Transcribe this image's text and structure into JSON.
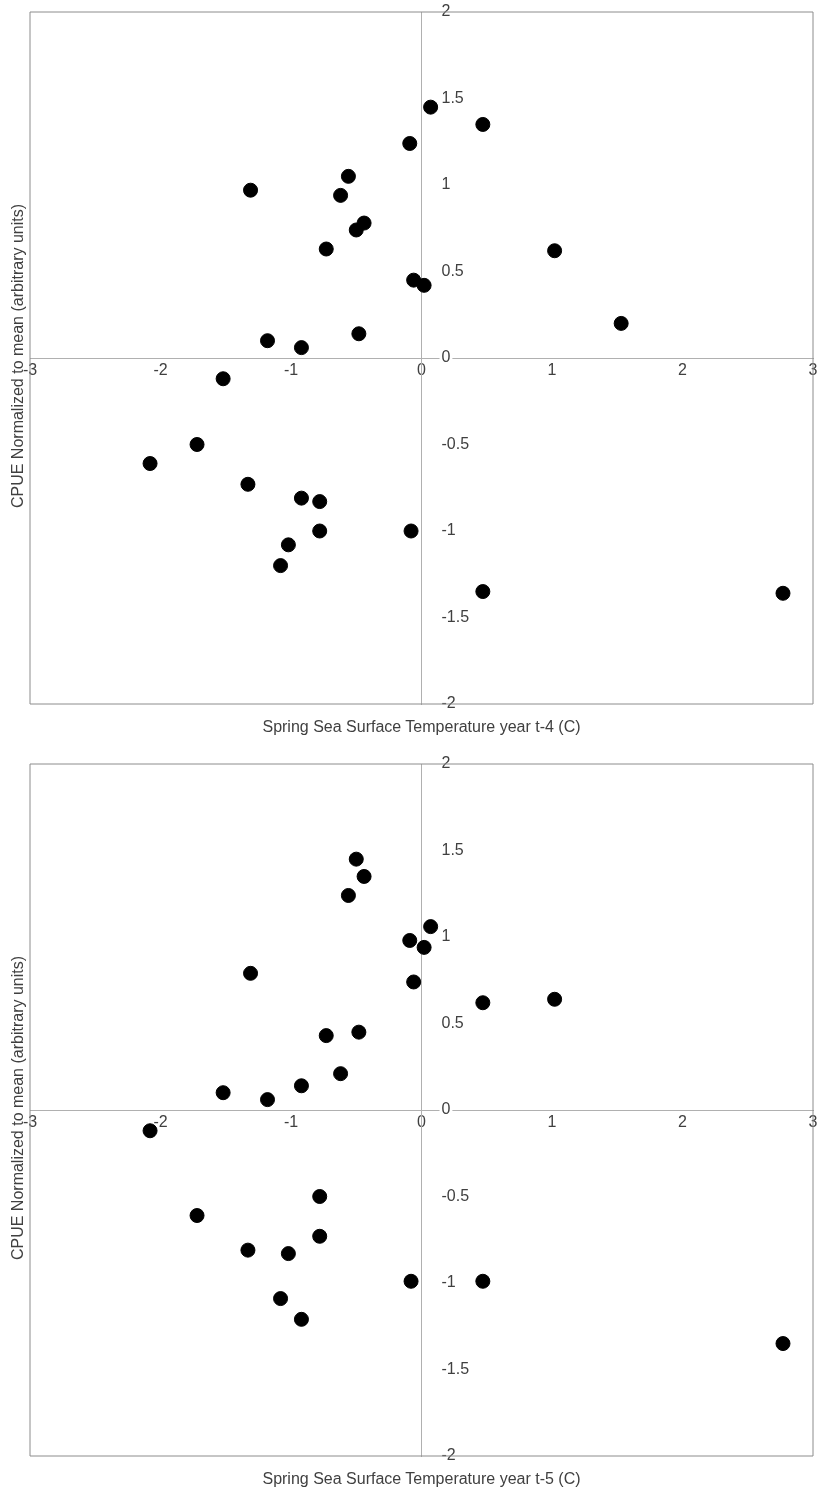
{
  "chart_data": [
    {
      "type": "scatter",
      "xlabel": "Spring Sea Surface Temperature year t-4 (C)",
      "ylabel": "CPUE Normalized to mean (arbitrary units)",
      "xlim": [
        -3,
        3
      ],
      "ylim": [
        -2,
        2
      ],
      "xticks": [
        -3,
        -2,
        -1,
        0,
        1,
        2,
        3
      ],
      "yticks": [
        -2,
        -1.5,
        -1,
        -0.5,
        0,
        0.5,
        1,
        1.5,
        2
      ],
      "marker": "circle",
      "series": [
        {
          "color": "#000000",
          "x": [
            0.07,
            0.47,
            -0.09,
            -1.31,
            -0.56,
            -0.62,
            -0.44,
            -0.5,
            -0.73,
            1.02,
            -0.06,
            0.02,
            1.53,
            -0.48,
            -1.18,
            -0.92,
            -1.52,
            -1.72,
            -2.08,
            -1.33,
            -0.92,
            -0.78,
            -0.78,
            -0.08,
            -1.02,
            -1.08,
            0.47,
            2.77
          ],
          "values": [
            1.45,
            1.35,
            1.24,
            0.97,
            1.05,
            0.94,
            0.78,
            0.74,
            0.63,
            0.62,
            0.45,
            0.42,
            0.2,
            0.14,
            0.1,
            0.06,
            -0.12,
            -0.5,
            -0.61,
            -0.73,
            -0.81,
            -0.83,
            -1.0,
            -1.0,
            -1.08,
            -1.2,
            -1.35,
            -1.36
          ]
        }
      ]
    },
    {
      "type": "scatter",
      "xlabel": "Spring Sea Surface Temperature year t-5 (C)",
      "ylabel": "CPUE Normalized to mean (arbitrary units)",
      "xlim": [
        -3,
        3
      ],
      "ylim": [
        -2,
        2
      ],
      "xticks": [
        -3,
        -2,
        -1,
        0,
        1,
        2,
        3
      ],
      "yticks": [
        -2,
        -1.5,
        -1,
        -0.5,
        0,
        0.5,
        1,
        1.5,
        2
      ],
      "marker": "circle",
      "series": [
        {
          "color": "#000000",
          "x": [
            -0.5,
            -0.44,
            -0.56,
            0.07,
            -0.09,
            0.02,
            -1.31,
            -0.06,
            1.02,
            0.47,
            -0.73,
            -0.48,
            -0.62,
            -0.92,
            -1.52,
            -1.18,
            -2.08,
            -0.78,
            -1.72,
            -0.78,
            -1.33,
            -1.02,
            -0.08,
            0.47,
            -1.08,
            -0.92,
            2.77
          ],
          "values": [
            1.45,
            1.35,
            1.24,
            1.06,
            0.98,
            0.94,
            0.79,
            0.74,
            0.64,
            0.62,
            0.43,
            0.45,
            0.21,
            0.14,
            0.1,
            0.06,
            -0.12,
            -0.5,
            -0.61,
            -0.73,
            -0.81,
            -0.83,
            -0.99,
            -0.99,
            -1.09,
            -1.21,
            -1.35
          ]
        }
      ]
    }
  ]
}
